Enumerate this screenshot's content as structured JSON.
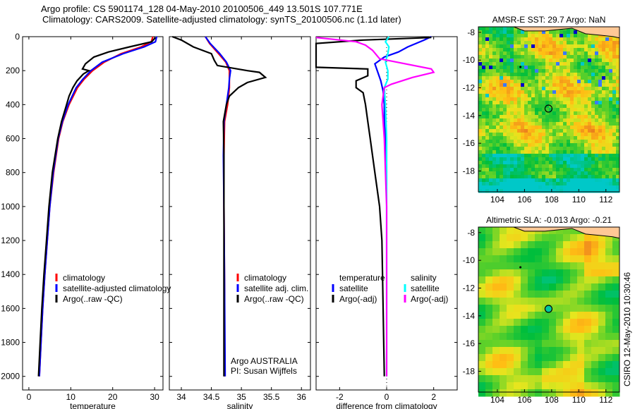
{
  "title_line1": "Argo profile: CS 5901174_128 04-May-2010 20100506_449 13.501S 107.771E",
  "title_line2": "Climatology: CARS2009. Satellite-adjusted climatology: synTS_20100506.nc (1.1d later)",
  "side_stamp": "CSIRO 12-May-2010 10:30:46",
  "colors": {
    "climatology": "#ff0000",
    "satellite": "#0000ff",
    "argo": "#000000",
    "sal_satellite": "#00ffff",
    "sal_argo": "#ff00ff",
    "land": "#ffc896"
  },
  "chart_data": [
    {
      "type": "line",
      "id": "temperature",
      "xlabel": "temperature",
      "ylabel": "",
      "xlim": [
        -1.5,
        32
      ],
      "ylim": [
        2080,
        0
      ],
      "xticks": [
        "0",
        "10",
        "20",
        "30"
      ],
      "xtick_values": [
        0,
        10,
        20,
        30
      ],
      "yticks": [
        "0",
        "200",
        "400",
        "600",
        "800",
        "1000",
        "1200",
        "1400",
        "1600",
        "1800",
        "2000"
      ],
      "ytick_values": [
        0,
        200,
        400,
        600,
        800,
        1000,
        1200,
        1400,
        1600,
        1800,
        2000
      ],
      "legend": [
        "climatology",
        "satellite-adjusted climatology",
        "Argo(..raw -QC)"
      ],
      "legend_placement": "bottom-right",
      "series": [
        {
          "name": "climatology",
          "color": "#ff0000",
          "depth": [
            0,
            30,
            60,
            100,
            150,
            200,
            250,
            300,
            400,
            500,
            600,
            800,
            1000,
            1200,
            1400,
            1600,
            1800,
            2000
          ],
          "values": [
            29.6,
            29.2,
            26.8,
            22,
            18,
            15.2,
            13.2,
            11.6,
            9.6,
            8.1,
            7.1,
            5.9,
            5.0,
            4.4,
            3.8,
            3.3,
            2.9,
            2.5
          ]
        },
        {
          "name": "satellite-adjusted climatology",
          "color": "#0000ff",
          "depth": [
            0,
            30,
            60,
            100,
            150,
            200,
            250,
            300,
            400,
            500,
            600,
            800,
            1000,
            1200,
            1400,
            1600,
            1800,
            2000
          ],
          "values": [
            30.5,
            30.2,
            27.5,
            22.5,
            17.5,
            14.8,
            12.9,
            11.3,
            9.4,
            8.0,
            7.0,
            5.8,
            5.0,
            4.4,
            3.8,
            3.3,
            2.9,
            2.5
          ]
        },
        {
          "name": "Argo(..raw -QC)",
          "color": "#000000",
          "depth": [
            5,
            30,
            60,
            90,
            120,
            160,
            190,
            200,
            220,
            260,
            300,
            350,
            400,
            500,
            600,
            800,
            1000,
            1200,
            1400,
            1600,
            1800,
            2000
          ],
          "values": [
            30.2,
            29.3,
            24,
            19,
            15.5,
            13.5,
            12.8,
            14.3,
            13,
            11.5,
            10.5,
            9.6,
            9,
            7.8,
            6.9,
            5.6,
            4.8,
            4.2,
            3.6,
            3.1,
            2.7,
            2.3
          ]
        }
      ]
    },
    {
      "type": "line",
      "id": "salinity",
      "xlabel": "salinity",
      "xlim": [
        33.8,
        36.15
      ],
      "ylim": [
        2080,
        0
      ],
      "xticks": [
        "34",
        "34.5",
        "35",
        "35.5",
        "36"
      ],
      "xtick_values": [
        34,
        34.5,
        35,
        35.5,
        36
      ],
      "legend": [
        "climatology",
        "satellite adj. clim.",
        "Argo(..raw -QC)"
      ],
      "legend_placement": "bottom-right",
      "annotation": [
        "Argo AUSTRALIA",
        "PI: Susan Wijffels"
      ],
      "series": [
        {
          "name": "climatology",
          "color": "#ff0000",
          "depth": [
            0,
            40,
            100,
            150,
            200,
            250,
            300,
            400,
            500,
            700,
            1000,
            1500,
            2000
          ],
          "values": [
            34.4,
            34.47,
            34.62,
            34.74,
            34.8,
            34.8,
            34.8,
            34.77,
            34.72,
            34.71,
            34.71,
            34.72,
            34.72
          ]
        },
        {
          "name": "satellite adj. clim.",
          "color": "#0000ff",
          "depth": [
            0,
            40,
            100,
            150,
            200,
            250,
            300,
            400,
            500,
            700,
            1000,
            1500,
            2000
          ],
          "values": [
            34.4,
            34.48,
            34.64,
            34.75,
            34.82,
            34.8,
            34.79,
            34.75,
            34.71,
            34.7,
            34.71,
            34.72,
            34.73
          ]
        },
        {
          "name": "Argo(..raw -QC)",
          "color": "#000000",
          "depth": [
            0,
            20,
            60,
            100,
            140,
            170,
            200,
            210,
            240,
            270,
            300,
            350,
            400,
            500,
            700,
            1000,
            1500,
            2000
          ],
          "values": [
            33.85,
            34.0,
            34.2,
            34.5,
            34.55,
            34.6,
            35.1,
            35.3,
            35.4,
            35.1,
            34.95,
            34.8,
            34.75,
            34.7,
            34.71,
            34.71,
            34.71,
            34.71
          ]
        }
      ]
    },
    {
      "type": "line",
      "id": "difference",
      "xlabel": "difference from climatology",
      "xlim": [
        -3,
        3
      ],
      "ylim": [
        2080,
        0
      ],
      "xticks": [
        "-2",
        "0",
        "2"
      ],
      "xtick_values": [
        -2,
        0,
        2
      ],
      "legend_temperature": [
        "temperature",
        "satellite",
        "Argo(-adj)"
      ],
      "legend_salinity": [
        "salinity",
        "satellite",
        "Argo(-adj)"
      ],
      "legend_placement": "bottom",
      "series": [
        {
          "name": "temperature satellite",
          "color": "#0000ff",
          "depth": [
            0,
            20,
            60,
            90,
            120,
            160,
            200,
            260,
            320,
            400,
            500,
            600,
            800
          ],
          "values": [
            1.9,
            1.6,
            0.9,
            0.5,
            -0.1,
            -0.5,
            -0.4,
            -0.25,
            -0.15,
            -0.1,
            -0.1,
            -0.05,
            0
          ]
        },
        {
          "name": "temperature Argo(-adj)",
          "color": "#000000",
          "depth": [
            5,
            20,
            40,
            180,
            190,
            230,
            260,
            300,
            330,
            400,
            500,
            600,
            700,
            800,
            1000,
            1200,
            1600,
            2000
          ],
          "values": [
            1.9,
            -1,
            -3,
            -3,
            -0.8,
            -0.8,
            -1.3,
            -1.3,
            -1.0,
            -0.9,
            -0.8,
            -0.7,
            -0.6,
            -0.5,
            -0.3,
            -0.2,
            -0.15,
            -0.1
          ]
        },
        {
          "name": "salinity satellite",
          "color": "#00ffff",
          "depth": [
            0,
            30,
            60,
            100,
            150,
            200,
            250,
            300,
            400,
            600,
            1000,
            1500,
            2000
          ],
          "values": [
            0.1,
            -0.05,
            0.1,
            0.05,
            -0.05,
            0.05,
            0.05,
            -0.1,
            -0.05,
            0,
            0,
            0,
            0
          ]
        },
        {
          "name": "salinity Argo(-adj)",
          "color": "#ff00ff",
          "depth": [
            5,
            30,
            50,
            80,
            130,
            190,
            210,
            240,
            280,
            300,
            400,
            600,
            1000,
            2000
          ],
          "values": [
            -3,
            -1.3,
            -0.9,
            -0.6,
            -0.3,
            1.9,
            2.0,
            1.1,
            0.2,
            -0.1,
            -0.2,
            -0.1,
            0,
            0
          ]
        }
      ]
    },
    {
      "type": "heatmap",
      "id": "sst-map",
      "title": "AMSR-E SST: 29.7 Argo: NaN",
      "xlim": [
        102.6,
        113
      ],
      "ylim": [
        -19.5,
        -7.6
      ],
      "xticks": [
        "104",
        "106",
        "108",
        "110",
        "112"
      ],
      "xtick_values": [
        104,
        106,
        108,
        110,
        112
      ],
      "yticks": [
        "-8",
        "-10",
        "-12",
        "-14",
        "-16",
        "-18"
      ],
      "ytick_values": [
        -8,
        -10,
        -12,
        -14,
        -16,
        -18
      ],
      "float_position": [
        107.771,
        -13.501
      ],
      "previous_position": [
        105.7,
        -10.5
      ]
    },
    {
      "type": "heatmap",
      "id": "sla-map",
      "title": "Altimetric SLA: -0.013 Argo: -0.21",
      "xlim": [
        102.6,
        113
      ],
      "ylim": [
        -19.5,
        -7.6
      ],
      "xticks": [
        "104",
        "106",
        "108",
        "110",
        "112"
      ],
      "xtick_values": [
        104,
        106,
        108,
        110,
        112
      ],
      "yticks": [
        "-8",
        "-10",
        "-12",
        "-14",
        "-16",
        "-18"
      ],
      "ytick_values": [
        -8,
        -10,
        -12,
        -14,
        -16,
        -18
      ],
      "float_position": [
        107.771,
        -13.501
      ],
      "previous_position": [
        105.7,
        -10.5
      ]
    }
  ]
}
